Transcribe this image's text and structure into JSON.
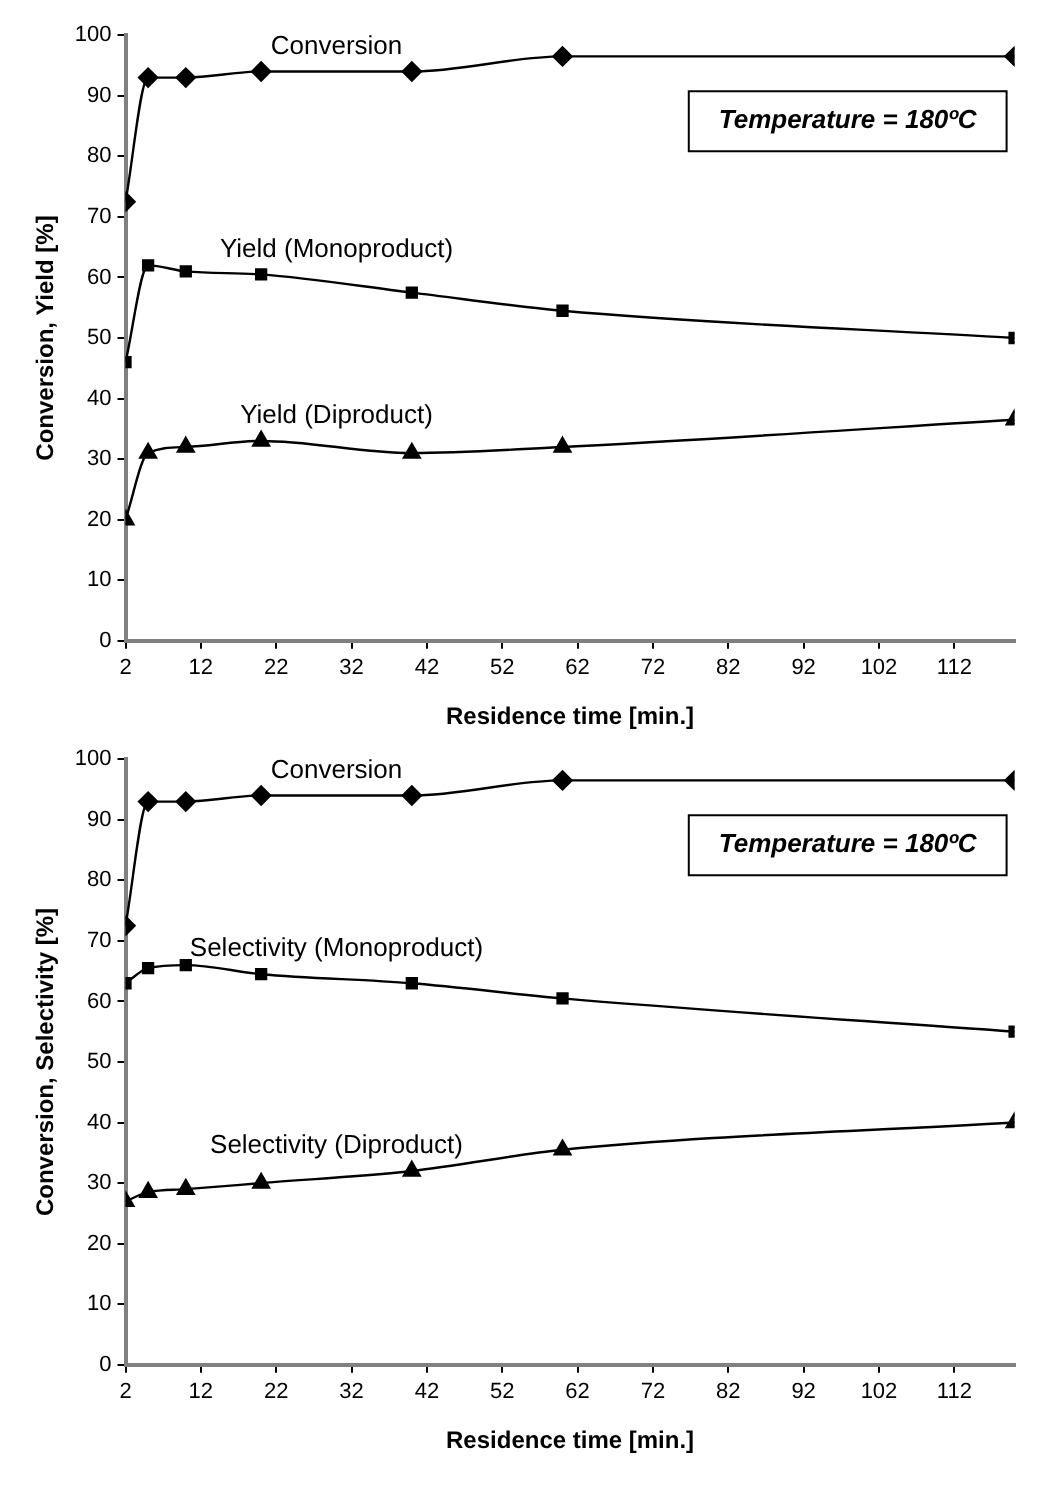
{
  "chart_data": [
    {
      "type": "line",
      "xlabel": "Residence time [min.]",
      "ylabel": "Conversion, Yield [%]",
      "x": [
        2,
        5,
        10,
        20,
        40,
        60,
        120
      ],
      "xlim": [
        2,
        120
      ],
      "xticks": [
        2,
        12,
        22,
        32,
        42,
        52,
        62,
        72,
        82,
        92,
        102,
        112
      ],
      "ylim": [
        0,
        100
      ],
      "yticks": [
        0,
        10,
        20,
        30,
        40,
        50,
        60,
        70,
        80,
        90,
        100
      ],
      "grid": false,
      "legend": false,
      "line_style": "solid",
      "annotations": [
        "Temperature = 180ºC"
      ],
      "series": [
        {
          "name": "Conversion",
          "color": "#000000",
          "marker": "diamond",
          "values": [
            72.5,
            93,
            93,
            94,
            94,
            96.5,
            96.5
          ]
        },
        {
          "name": "Yield (Monoproduct)",
          "color": "#000000",
          "marker": "square",
          "values": [
            46,
            62,
            61,
            60.5,
            57.5,
            54.5,
            50
          ]
        },
        {
          "name": "Yield (Diproduct)",
          "color": "#000000",
          "marker": "triangle",
          "values": [
            20,
            31,
            32,
            33,
            31,
            32,
            36.5
          ]
        }
      ]
    },
    {
      "type": "line",
      "xlabel": "Residence time [min.]",
      "ylabel": "Conversion, Selectivity [%]",
      "x": [
        2,
        5,
        10,
        20,
        40,
        60,
        120
      ],
      "xlim": [
        2,
        120
      ],
      "xticks": [
        2,
        12,
        22,
        32,
        42,
        52,
        62,
        72,
        82,
        92,
        102,
        112
      ],
      "ylim": [
        0,
        100
      ],
      "yticks": [
        0,
        10,
        20,
        30,
        40,
        50,
        60,
        70,
        80,
        90,
        100
      ],
      "grid": false,
      "legend": false,
      "line_style": "solid",
      "annotations": [
        "Temperature = 180ºC"
      ],
      "series": [
        {
          "name": "Conversion",
          "color": "#000000",
          "marker": "diamond",
          "values": [
            72.5,
            93,
            93,
            94,
            94,
            96.5,
            96.5
          ]
        },
        {
          "name": "Selectivity (Monoproduct)",
          "color": "#000000",
          "marker": "square",
          "values": [
            63,
            65.5,
            66,
            64.5,
            63,
            60.5,
            55
          ]
        },
        {
          "name": "Selectivity (Diproduct)",
          "color": "#000000",
          "marker": "triangle",
          "values": [
            27,
            28.5,
            29,
            30,
            32,
            35.5,
            40
          ]
        }
      ]
    }
  ]
}
